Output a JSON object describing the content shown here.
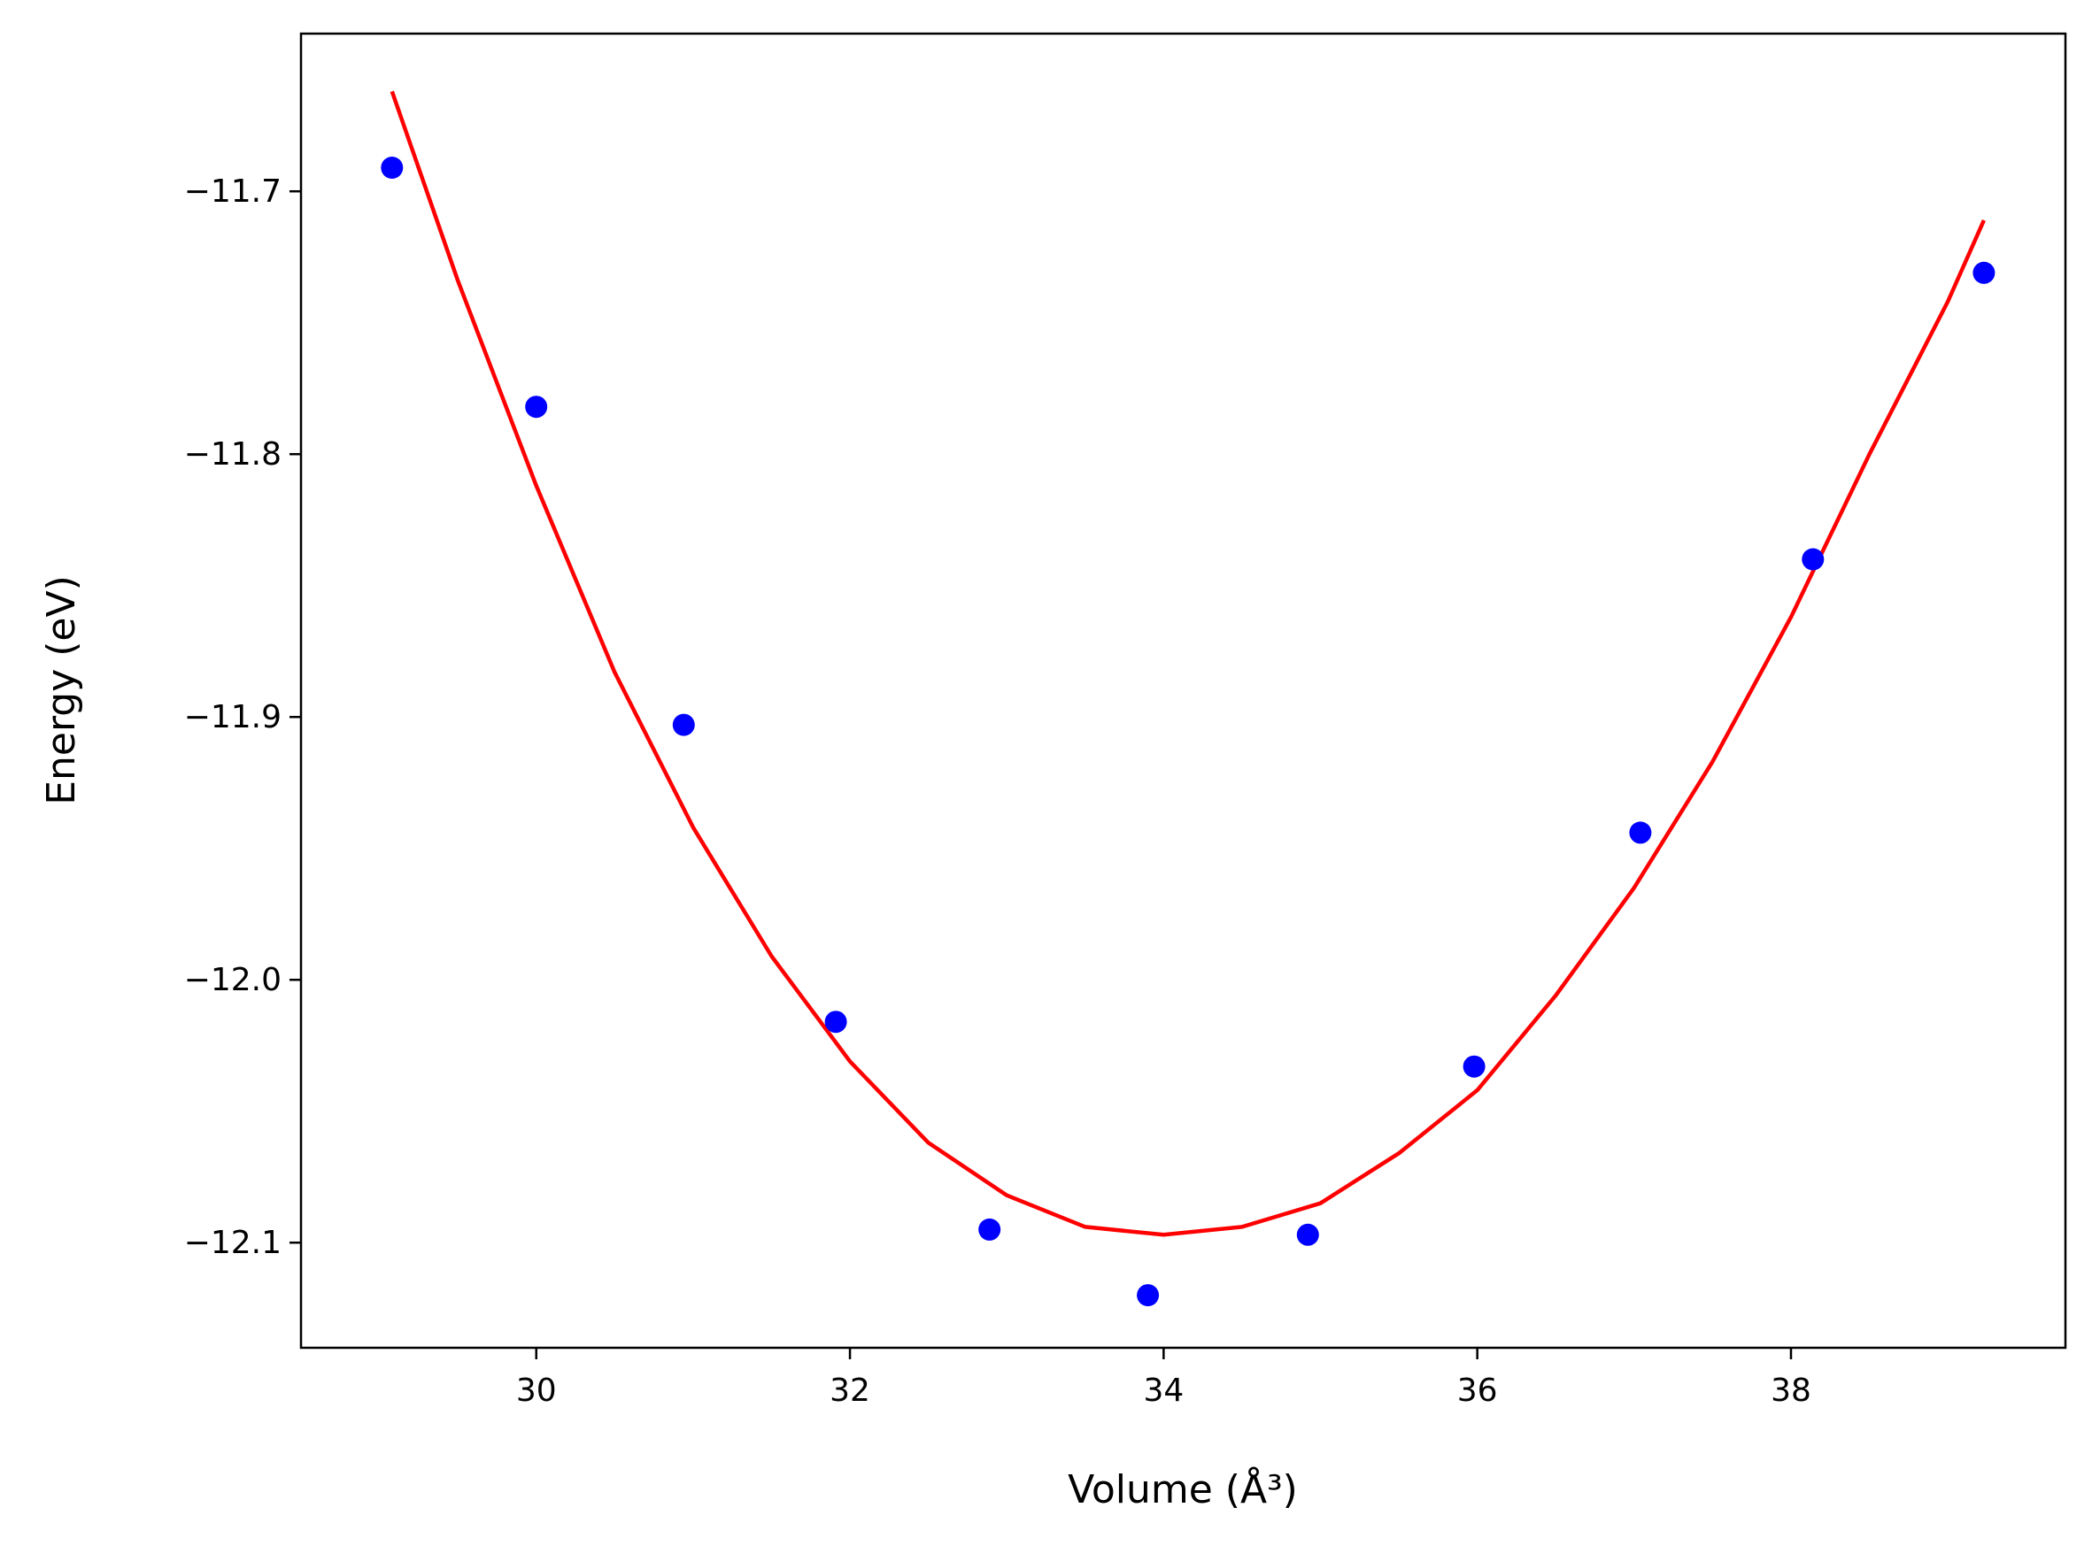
{
  "chart_data": {
    "type": "scatter",
    "title": "",
    "xlabel": "Volume (Å³)",
    "ylabel": "Energy (eV)",
    "xlim": [
      28.5,
      39.75
    ],
    "ylim": [
      -12.14,
      -11.64
    ],
    "xticks": [
      30,
      32,
      34,
      36,
      38
    ],
    "xtick_labels": [
      "30",
      "32",
      "34",
      "36",
      "38"
    ],
    "yticks": [
      -11.7,
      -11.8,
      -11.9,
      -12.0,
      -12.1
    ],
    "ytick_labels": [
      "−11.7",
      "−11.8",
      "−11.9",
      "−12.0",
      "−12.1"
    ],
    "grid": false,
    "legend": "none",
    "colors": {
      "points": "#0000ff",
      "fit": "#ff0000"
    },
    "series": [
      {
        "kind": "scatter",
        "x": [
          29.08,
          30.0,
          30.94,
          31.91,
          32.89,
          33.9,
          34.92,
          35.98,
          37.04,
          38.14,
          39.23
        ],
        "y": [
          -11.691,
          -11.782,
          -11.903,
          -12.016,
          -12.095,
          -12.12,
          -12.097,
          -12.033,
          -11.944,
          -11.84,
          -11.731
        ]
      },
      {
        "kind": "line",
        "x": [
          29.08,
          29.5,
          30.0,
          30.5,
          31.0,
          31.5,
          32.0,
          32.5,
          33.0,
          33.5,
          34.0,
          34.5,
          35.0,
          35.5,
          36.0,
          36.5,
          37.0,
          37.5,
          38.0,
          38.5,
          39.0,
          39.23
        ],
        "y": [
          -11.662,
          -11.734,
          -11.812,
          -11.883,
          -11.942,
          -11.991,
          -12.031,
          -12.062,
          -12.082,
          -12.094,
          -12.097,
          -12.094,
          -12.085,
          -12.066,
          -12.042,
          -12.006,
          -11.965,
          -11.917,
          -11.862,
          -11.8,
          -11.742,
          -11.711
        ]
      }
    ]
  }
}
